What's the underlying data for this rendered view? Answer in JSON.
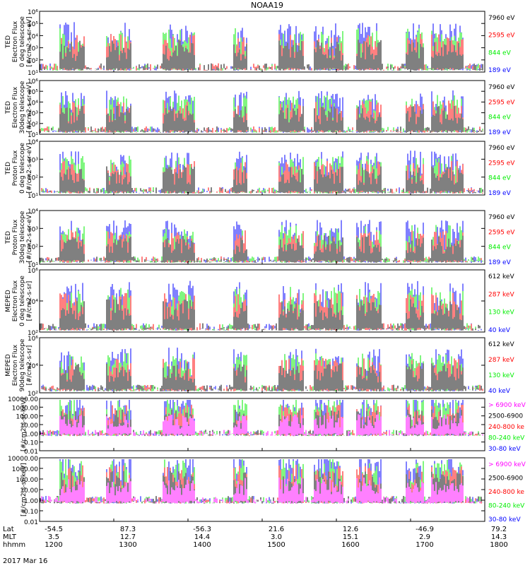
{
  "title": "NOAA19",
  "date_label": "2017 Mar 16",
  "colors": {
    "black": "#000000",
    "red": "#ff0000",
    "green": "#00ee00",
    "blue": "#0000ff",
    "magenta": "#ff00ff"
  },
  "chart_data": [
    {
      "type": "line",
      "scale": "log",
      "ylim": [
        1,
        1000000
      ],
      "ylabel": [
        "TED",
        "Electron Flux",
        "0 deg telescope",
        "[#/cm2-s-sr-eV]"
      ],
      "yticks": [
        "10¹",
        "10²",
        "10³",
        "10⁴",
        "10⁵",
        "10⁶"
      ],
      "legend": [
        {
          "label": "7960 eV",
          "color": "black"
        },
        {
          "label": "2595 eV",
          "color": "red"
        },
        {
          "label": "844 eV",
          "color": "green"
        },
        {
          "label": "189 eV",
          "color": "blue"
        }
      ]
    },
    {
      "type": "line",
      "scale": "log",
      "ylim": [
        1,
        1000000
      ],
      "ylabel": [
        "TED",
        "Electron Flux",
        "30deg telescope",
        "[#/cm2-s-sr-eV]"
      ],
      "yticks": [
        "10¹",
        "10²",
        "10³",
        "10⁴",
        "10⁵",
        "10⁶"
      ],
      "legend": [
        {
          "label": "7960 eV",
          "color": "black"
        },
        {
          "label": "2595 eV",
          "color": "red"
        },
        {
          "label": "844 eV",
          "color": "green"
        },
        {
          "label": "189 eV",
          "color": "blue"
        }
      ]
    },
    {
      "type": "line",
      "scale": "log",
      "ylim": [
        1,
        10000
      ],
      "ylabel": [
        "TED",
        "Proton Flux",
        "0 deg telescope",
        "[#/cm2-s-sr-eV]"
      ],
      "yticks": [
        "10¹",
        "10²",
        "10³",
        "10⁴"
      ],
      "legend": [
        {
          "label": "7960 eV",
          "color": "black"
        },
        {
          "label": "2595 eV",
          "color": "red"
        },
        {
          "label": "844 eV",
          "color": "green"
        },
        {
          "label": "189 eV",
          "color": "blue"
        }
      ]
    },
    {
      "type": "line",
      "scale": "log",
      "ylim": [
        1,
        10000
      ],
      "ylabel": [
        "TED",
        "Proton Flux",
        "30deg telescope",
        "[#/cm2-s-sr-eV]"
      ],
      "yticks": [
        "10¹",
        "10²",
        "10³",
        "10⁴"
      ],
      "legend": [
        {
          "label": "7960 eV",
          "color": "black"
        },
        {
          "label": "2595 eV",
          "color": "red"
        },
        {
          "label": "844 eV",
          "color": "green"
        },
        {
          "label": "189 eV",
          "color": "blue"
        }
      ]
    },
    {
      "type": "line",
      "scale": "log",
      "ylim": [
        100,
        1000000
      ],
      "ylabel": [
        "MEPED",
        "Electron Flux",
        "0 deg telescope",
        "[#/cm2-s-sr]"
      ],
      "yticks": [
        "10²",
        "10⁴",
        "10⁶"
      ],
      "legend": [
        {
          "label": "612 keV",
          "color": "black"
        },
        {
          "label": "287 keV",
          "color": "red"
        },
        {
          "label": "130 keV",
          "color": "green"
        },
        {
          "label": "40 keV",
          "color": "blue"
        }
      ]
    },
    {
      "type": "line",
      "scale": "log",
      "ylim": [
        100,
        1000000
      ],
      "ylabel": [
        "MEPED",
        "Electron Flux",
        "90deg telescope",
        "[#/cm2-s-sr]"
      ],
      "yticks": [
        "10²",
        "10⁴",
        "10⁶"
      ],
      "legend": [
        {
          "label": "612 keV",
          "color": "black"
        },
        {
          "label": "287 keV",
          "color": "red"
        },
        {
          "label": "130 keV",
          "color": "green"
        },
        {
          "label": "40 keV",
          "color": "blue"
        }
      ]
    },
    {
      "type": "line",
      "scale": "log",
      "ylim": [
        0.01,
        10000
      ],
      "ylabel": [
        "[#/cm2-s-sr-keV]"
      ],
      "yticks": [
        "0.01",
        "0.10",
        "1.00",
        "10.00",
        "100.00",
        "1000.00",
        "10000.00"
      ],
      "legend": [
        {
          "label": "> 6900 keV",
          "color": "magenta"
        },
        {
          "label": "2500-6900",
          "color": "black"
        },
        {
          "label": "240-800 ke",
          "color": "red"
        },
        {
          "label": "80-240 keV",
          "color": "green"
        },
        {
          "label": "30-80 keV",
          "color": "blue"
        }
      ]
    },
    {
      "type": "line",
      "scale": "log",
      "ylim": [
        0.01,
        10000
      ],
      "ylabel": [
        "[#/cm2-s-sr-keV]"
      ],
      "yticks": [
        "0.01",
        "0.10",
        "1.00",
        "10.00",
        "100.00",
        "1000.00",
        "10000.00"
      ],
      "legend": [
        {
          "label": "> 6900 keV",
          "color": "magenta"
        },
        {
          "label": "2500-6900",
          "color": "black"
        },
        {
          "label": "240-800 ke",
          "color": "red"
        },
        {
          "label": "80-240 keV",
          "color": "green"
        },
        {
          "label": "30-80 keV",
          "color": "blue"
        }
      ]
    }
  ],
  "x_axis": {
    "row_labels": [
      "Lat",
      "MLT",
      "hhmm"
    ],
    "ticks": [
      {
        "lat": "-54.5",
        "mlt": "3.5",
        "hhmm": "1200"
      },
      {
        "lat": "87.3",
        "mlt": "12.7",
        "hhmm": "1300"
      },
      {
        "lat": "-56.3",
        "mlt": "14.4",
        "hhmm": "1400"
      },
      {
        "lat": "21.6",
        "mlt": "3.0",
        "hhmm": "1500"
      },
      {
        "lat": "12.6",
        "mlt": "15.1",
        "hhmm": "1600"
      },
      {
        "lat": "-46.9",
        "mlt": "2.9",
        "hhmm": "1700"
      },
      {
        "lat": "79.2",
        "mlt": "14.3",
        "hhmm": "1800"
      }
    ]
  }
}
